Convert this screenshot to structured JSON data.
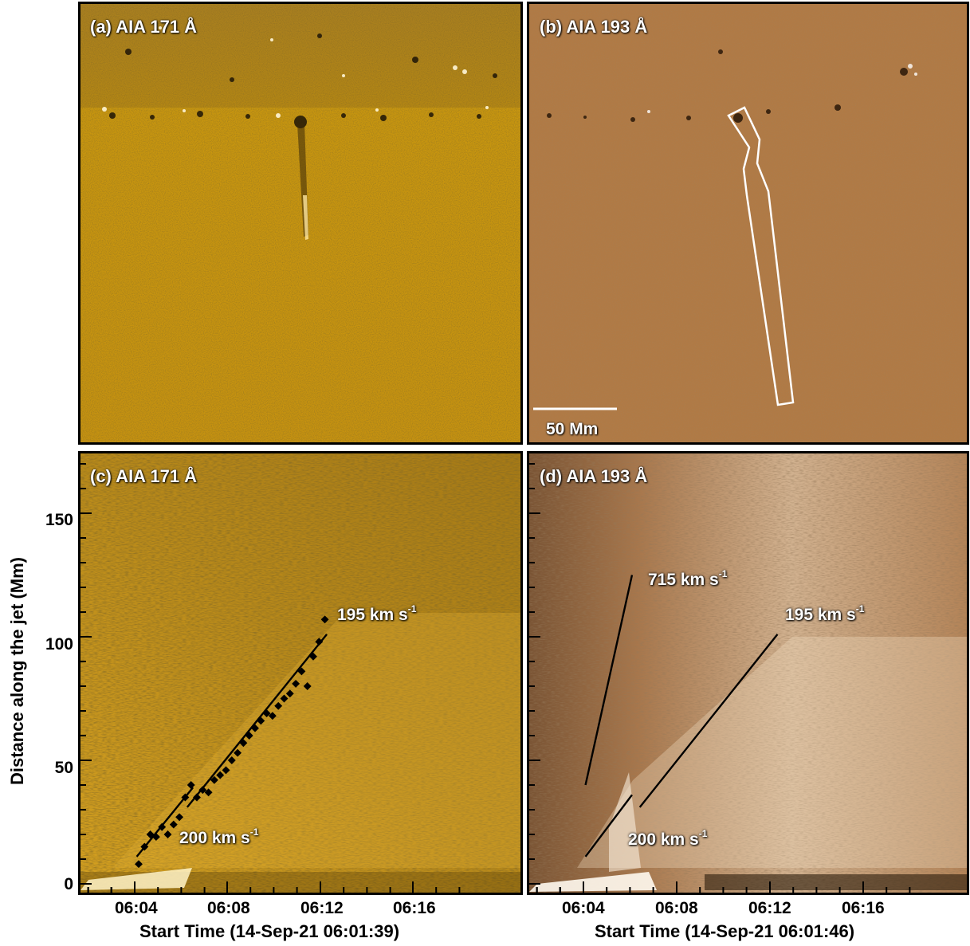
{
  "panels": {
    "a": {
      "label": "(a) AIA 171 Å"
    },
    "b": {
      "label": "(b) AIA 193 Å",
      "scale_bar": "50 Mm"
    },
    "c": {
      "label": "(c) AIA 171 Å",
      "speeds": {
        "upper": "195 km s",
        "lower": "200 km s",
        "unit_exp": "-1"
      },
      "xaxis_title": "Start Time (14-Sep-21 06:01:39)"
    },
    "d": {
      "label": "(d) AIA 193 Å",
      "speeds": {
        "fast": "715 km s",
        "upper": "195 km s",
        "lower": "200 km s",
        "unit_exp": "-1"
      },
      "xaxis_title": "Start Time (14-Sep-21 06:01:46)"
    }
  },
  "yaxis": {
    "title": "Distance along the jet (Mm)",
    "ticks": [
      "150",
      "100",
      "50",
      "0"
    ]
  },
  "xaxis": {
    "ticks": [
      "06:04",
      "06:08",
      "06:12",
      "06:16"
    ]
  },
  "colors": {
    "aia171": "#c8930f",
    "aia193": "#b07a45",
    "frame": "#000000",
    "overlay": "#ffffff"
  },
  "chart_data": {
    "type": "scatter",
    "title": "",
    "xlabel": "Start Time (14-Sep-21 06:01:39)",
    "ylabel": "Distance along the jet (Mm)",
    "ylim": [
      -3,
      178
    ],
    "series": [
      {
        "name": "",
        "x": [
          "06:03:50",
          "06:04:05",
          "06:04:20",
          "06:04:35",
          "06:04:50",
          "06:05:05",
          "06:05:20",
          "06:05:35",
          "06:05:50",
          "06:06:05",
          "06:06:20",
          "06:06:35",
          "06:06:50",
          "06:07:05",
          "06:07:20",
          "06:07:35",
          "06:07:50",
          "06:08:05",
          "06:08:20",
          "06:08:35",
          "06:08:50",
          "06:09:05",
          "06:09:20",
          "06:09:35",
          "06:09:50",
          "06:10:05",
          "06:10:20",
          "06:10:35",
          "06:10:50",
          "06:11:05",
          "06:11:20",
          "06:11:35",
          "06:11:50"
        ],
        "y": [
          8,
          15,
          20,
          19,
          23,
          20,
          24,
          27,
          35,
          40,
          35,
          38,
          37,
          42,
          44,
          46,
          50,
          53,
          57,
          60,
          63,
          66,
          69,
          68,
          72,
          75,
          77,
          81,
          86,
          80,
          92,
          98,
          107
        ]
      }
    ],
    "fits": [
      {
        "panel": "c",
        "label": "195 km s-1",
        "from": [
          "06:05:55",
          31
        ],
        "to": [
          "06:11:55",
          101
        ]
      },
      {
        "panel": "c",
        "label": "200 km s-1",
        "from": [
          "06:03:45",
          11
        ],
        "to": [
          "06:06:10",
          39
        ]
      },
      {
        "panel": "d",
        "label": "715 km s-1",
        "from": [
          "06:03:50",
          40
        ],
        "to": [
          "06:05:50",
          125
        ]
      },
      {
        "panel": "d",
        "label": "195 km s-1",
        "from": [
          "06:06:10",
          31
        ],
        "to": [
          "06:12:05",
          101
        ]
      },
      {
        "panel": "d",
        "label": "200 km s-1",
        "from": [
          "06:03:50",
          11
        ],
        "to": [
          "06:05:50",
          36
        ]
      }
    ]
  }
}
